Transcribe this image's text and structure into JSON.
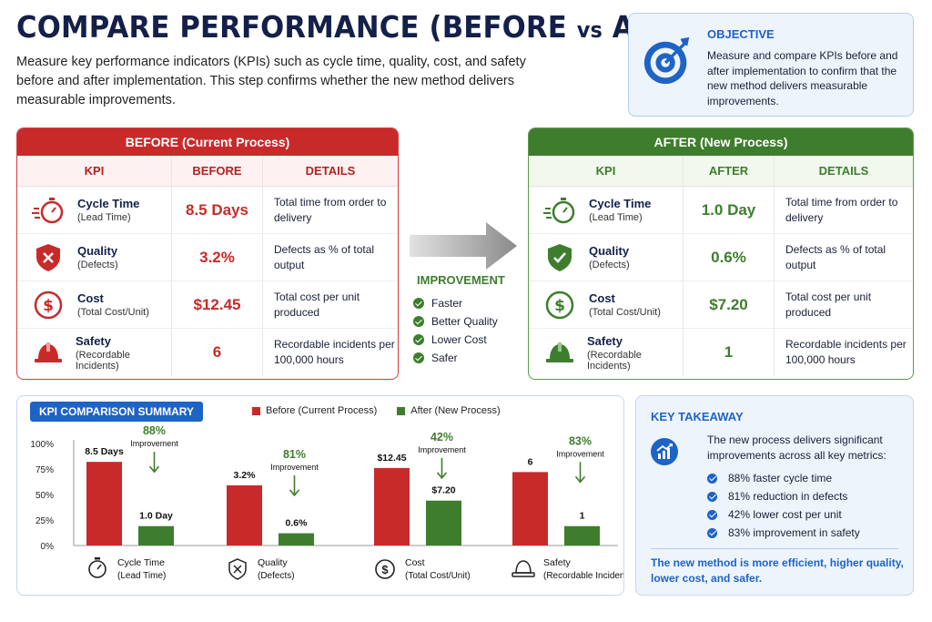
{
  "header": {
    "title_main": "COMPARE PERFORMANCE (BEFORE ",
    "title_vs": "vs",
    "title_end": " AFTER)",
    "subtitle": "Measure key performance indicators (KPIs) such as cycle time, quality, cost, and safety before and after implementation. This step confirms whether the new method delivers measurable improvements."
  },
  "objective": {
    "heading": "OBJECTIVE",
    "text": "Measure and compare KPIs before and after implementation to confirm that the new method delivers measurable improvements.",
    "icon": "target-icon"
  },
  "before": {
    "title": "BEFORE (Current Process)",
    "headers": [
      "KPI",
      "BEFORE",
      "DETAILS"
    ],
    "rows": [
      {
        "name": "Cycle Time",
        "sub": "(Lead Time)",
        "value": "8.5 Days",
        "details": "Total time from order to delivery",
        "icon": "stopwatch-icon"
      },
      {
        "name": "Quality",
        "sub": "(Defects)",
        "value": "3.2%",
        "details": "Defects as % of total output",
        "icon": "shield-x-icon"
      },
      {
        "name": "Cost",
        "sub": "(Total Cost/Unit)",
        "value": "$12.45",
        "details": "Total cost per unit produced",
        "icon": "dollar-icon"
      },
      {
        "name": "Safety",
        "sub": "(Recordable Incidents)",
        "value": "6",
        "details": "Recordable incidents per 100,000 hours",
        "icon": "hardhat-icon"
      }
    ]
  },
  "after": {
    "title": "AFTER (New Process)",
    "headers": [
      "KPI",
      "AFTER",
      "DETAILS"
    ],
    "rows": [
      {
        "name": "Cycle Time",
        "sub": "(Lead Time)",
        "value": "1.0 Day",
        "details": "Total time from order to delivery",
        "icon": "stopwatch-icon"
      },
      {
        "name": "Quality",
        "sub": "(Defects)",
        "value": "0.6%",
        "details": "Defects as % of total output",
        "icon": "shield-check-icon"
      },
      {
        "name": "Cost",
        "sub": "(Total Cost/Unit)",
        "value": "$7.20",
        "details": "Total cost per unit produced",
        "icon": "dollar-icon"
      },
      {
        "name": "Safety",
        "sub": "(Recordable Incidents)",
        "value": "1",
        "details": "Recordable incidents per 100,000 hours",
        "icon": "hardhat-icon"
      }
    ]
  },
  "improvement": {
    "heading": "IMPROVEMENT",
    "items": [
      "Faster",
      "Better Quality",
      "Lower Cost",
      "Safer"
    ]
  },
  "colors": {
    "before": "#c82a2a",
    "after": "#3e7d2e",
    "accent": "#1e63c6",
    "navy": "#14204a"
  },
  "summary": {
    "title": "KPI COMPARISON SUMMARY",
    "improvement_word": "Improvement"
  },
  "chart_data": {
    "type": "bar",
    "title": "KPI COMPARISON SUMMARY",
    "ylim": [
      0,
      100
    ],
    "y_ticks": [
      "0%",
      "25%",
      "50%",
      "75%",
      "100%"
    ],
    "legend_position": "top",
    "series": [
      {
        "name": "Before (Current Process)",
        "color": "#c82a2a",
        "values": [
          82,
          59,
          76,
          72
        ],
        "labels": [
          "8.5 Days",
          "3.2%",
          "$12.45",
          "6"
        ]
      },
      {
        "name": "After (New Process)",
        "color": "#3e7d2e",
        "values": [
          19,
          12,
          44,
          19
        ],
        "labels": [
          "1.0 Day",
          "0.6%",
          "$7.20",
          "1"
        ]
      }
    ],
    "categories": [
      {
        "name": "Cycle Time",
        "sub": "(Lead Time)",
        "improvement": "88%",
        "icon": "stopwatch-icon"
      },
      {
        "name": "Quality",
        "sub": "(Defects)",
        "improvement": "81%",
        "icon": "shield-x-icon"
      },
      {
        "name": "Cost",
        "sub": "(Total Cost/Unit)",
        "improvement": "42%",
        "icon": "dollar-icon"
      },
      {
        "name": "Safety",
        "sub": "(Recordable Incidents)",
        "improvement": "83%",
        "icon": "hardhat-icon"
      }
    ]
  },
  "takeaway": {
    "heading": "KEY TAKEAWAY",
    "intro": "The new process delivers significant improvements across all key metrics:",
    "items": [
      "88% faster cycle time",
      "81% reduction in defects",
      "42% lower cost per unit",
      "83% improvement in safety"
    ],
    "conclusion": "The new method is more efficient, higher quality, lower cost, and safer.",
    "icon": "trending-chart-icon"
  }
}
